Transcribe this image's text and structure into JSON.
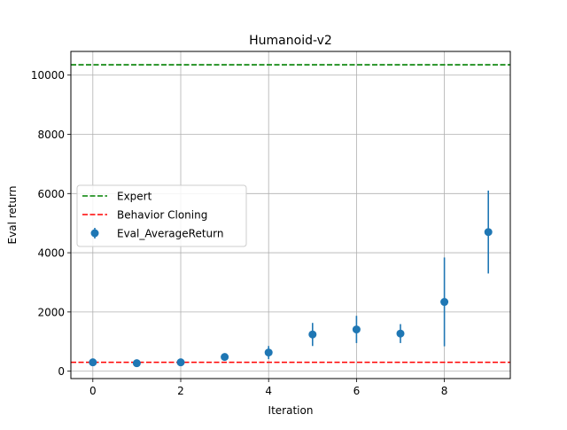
{
  "chart_data": {
    "type": "scatter",
    "title": "Humanoid-v2",
    "xlabel": "Iteration",
    "ylabel": "Eval return",
    "xlim": [
      -0.5,
      9.5
    ],
    "ylim": [
      -250,
      10800
    ],
    "x_ticks": [
      0,
      2,
      4,
      6,
      8
    ],
    "y_ticks": [
      0,
      2000,
      4000,
      6000,
      8000,
      10000
    ],
    "grid": true,
    "legend_position": "center-left",
    "series": [
      {
        "name": "Eval_AverageReturn",
        "kind": "errorbar",
        "color": "#1f77b4",
        "x": [
          0,
          1,
          2,
          3,
          4,
          5,
          6,
          7,
          8,
          9
        ],
        "y": [
          300,
          270,
          300,
          480,
          630,
          1240,
          1410,
          1270,
          2340,
          4700
        ],
        "yerr": [
          40,
          30,
          30,
          60,
          220,
          390,
          460,
          320,
          1500,
          1400
        ]
      }
    ],
    "reference_lines": [
      {
        "name": "Expert",
        "y": 10350,
        "color": "#008000",
        "style": "dashed"
      },
      {
        "name": "Behavior Cloning",
        "y": 300,
        "color": "#ff0000",
        "style": "dashed"
      }
    ]
  }
}
